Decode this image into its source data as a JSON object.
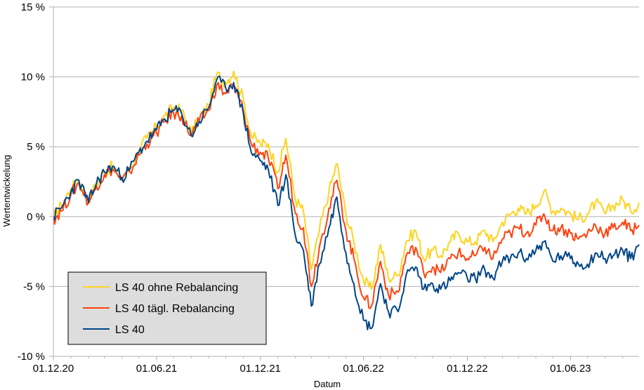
{
  "chart_data": {
    "type": "line",
    "title": "",
    "xlabel": "Datum",
    "ylabel": "Wertentwickelung",
    "ylim": [
      -10,
      15
    ],
    "y_ticks": [
      -10,
      -5,
      0,
      5,
      10,
      15
    ],
    "y_tick_labels": [
      "-10 %",
      "-5 %",
      "0 %",
      "5 %",
      "10 %",
      "15 %"
    ],
    "x_range": [
      "2020-12-01",
      "2023-09-30"
    ],
    "x_ticks": [
      "2020-12-01",
      "2021-06-01",
      "2021-12-01",
      "2022-06-01",
      "2022-12-01",
      "2023-06-01"
    ],
    "x_tick_labels": [
      "01.12.20",
      "01.06.21",
      "01.12.21",
      "01.06.22",
      "01.12.22",
      "01.06.23"
    ],
    "grid": "horizontal",
    "legend_position": "bottom-left",
    "series": [
      {
        "name": "LS 40 ohne Rebalancing",
        "color": "#FFD320",
        "x": [
          "2020-12-01",
          "2020-12-15",
          "2021-01-01",
          "2021-01-15",
          "2021-02-01",
          "2021-02-15",
          "2021-03-01",
          "2021-03-15",
          "2021-04-01",
          "2021-04-15",
          "2021-05-01",
          "2021-05-15",
          "2021-06-01",
          "2021-06-15",
          "2021-07-01",
          "2021-07-15",
          "2021-08-01",
          "2021-08-15",
          "2021-09-01",
          "2021-09-15",
          "2021-10-01",
          "2021-10-15",
          "2021-11-01",
          "2021-11-15",
          "2021-12-01",
          "2021-12-15",
          "2022-01-01",
          "2022-01-15",
          "2022-02-01",
          "2022-02-15",
          "2022-03-01",
          "2022-03-15",
          "2022-04-01",
          "2022-04-15",
          "2022-05-01",
          "2022-05-15",
          "2022-06-01",
          "2022-06-15",
          "2022-07-01",
          "2022-07-15",
          "2022-08-01",
          "2022-08-15",
          "2022-09-01",
          "2022-09-15",
          "2022-10-01",
          "2022-10-15",
          "2022-11-01",
          "2022-11-15",
          "2022-12-01",
          "2022-12-15",
          "2023-01-01",
          "2023-01-15",
          "2023-02-01",
          "2023-02-15",
          "2023-03-01",
          "2023-03-15",
          "2023-04-01",
          "2023-04-15",
          "2023-05-01",
          "2023-05-15",
          "2023-06-01",
          "2023-06-15",
          "2023-07-01",
          "2023-07-15",
          "2023-08-01",
          "2023-08-15",
          "2023-09-01",
          "2023-09-15",
          "2023-09-30"
        ],
        "values": [
          0.0,
          0.8,
          2.0,
          2.6,
          1.2,
          2.4,
          3.2,
          3.6,
          2.8,
          3.4,
          4.8,
          5.6,
          6.4,
          7.2,
          7.8,
          7.6,
          6.0,
          7.0,
          8.0,
          10.2,
          9.6,
          10.4,
          8.4,
          5.8,
          5.2,
          5.2,
          3.2,
          5.6,
          1.2,
          0.4,
          -3.8,
          -1.0,
          1.8,
          3.8,
          0.2,
          -1.8,
          -4.6,
          -5.2,
          -2.0,
          -4.4,
          -4.2,
          -1.8,
          -1.0,
          -3.0,
          -2.4,
          -2.8,
          -1.8,
          -1.2,
          -1.8,
          -1.8,
          -1.0,
          -1.8,
          -0.4,
          0.2,
          0.6,
          0.2,
          0.8,
          1.8,
          0.4,
          0.6,
          0.2,
          -0.2,
          0.2,
          1.0,
          0.2,
          0.8,
          1.2,
          0.4,
          1.0
        ]
      },
      {
        "name": "LS 40 tägl. Rebalancing",
        "color": "#FF420E",
        "x": [
          "2020-12-01",
          "2020-12-15",
          "2021-01-01",
          "2021-01-15",
          "2021-02-01",
          "2021-02-15",
          "2021-03-01",
          "2021-03-15",
          "2021-04-01",
          "2021-04-15",
          "2021-05-01",
          "2021-05-15",
          "2021-06-01",
          "2021-06-15",
          "2021-07-01",
          "2021-07-15",
          "2021-08-01",
          "2021-08-15",
          "2021-09-01",
          "2021-09-15",
          "2021-10-01",
          "2021-10-15",
          "2021-11-01",
          "2021-11-15",
          "2021-12-01",
          "2021-12-15",
          "2022-01-01",
          "2022-01-15",
          "2022-02-01",
          "2022-02-15",
          "2022-03-01",
          "2022-03-15",
          "2022-04-01",
          "2022-04-15",
          "2022-05-01",
          "2022-05-15",
          "2022-06-01",
          "2022-06-15",
          "2022-07-01",
          "2022-07-15",
          "2022-08-01",
          "2022-08-15",
          "2022-09-01",
          "2022-09-15",
          "2022-10-01",
          "2022-10-15",
          "2022-11-01",
          "2022-11-15",
          "2022-12-01",
          "2022-12-15",
          "2023-01-01",
          "2023-01-15",
          "2023-02-01",
          "2023-02-15",
          "2023-03-01",
          "2023-03-15",
          "2023-04-01",
          "2023-04-15",
          "2023-05-01",
          "2023-05-15",
          "2023-06-01",
          "2023-06-15",
          "2023-07-01",
          "2023-07-15",
          "2023-08-01",
          "2023-08-15",
          "2023-09-01",
          "2023-09-15",
          "2023-09-30"
        ],
        "values": [
          -0.2,
          0.4,
          1.6,
          2.4,
          1.0,
          2.2,
          3.0,
          3.4,
          2.6,
          3.2,
          4.4,
          5.2,
          6.0,
          6.8,
          7.4,
          7.2,
          5.8,
          6.8,
          7.6,
          9.4,
          8.8,
          9.4,
          7.6,
          5.2,
          4.6,
          4.2,
          2.0,
          4.4,
          0.2,
          -0.8,
          -5.0,
          -2.2,
          0.6,
          2.6,
          -1.0,
          -3.0,
          -5.8,
          -6.4,
          -3.2,
          -5.6,
          -5.4,
          -2.8,
          -2.2,
          -4.0,
          -3.6,
          -4.0,
          -3.0,
          -2.6,
          -3.0,
          -2.8,
          -2.2,
          -3.0,
          -1.6,
          -1.2,
          -0.8,
          -1.2,
          -0.6,
          0.2,
          -1.0,
          -0.8,
          -1.2,
          -1.6,
          -1.2,
          -0.6,
          -1.2,
          -0.8,
          -0.4,
          -1.0,
          -0.6
        ]
      },
      {
        "name": "LS 40",
        "color": "#004586",
        "x": [
          "2020-12-01",
          "2020-12-15",
          "2021-01-01",
          "2021-01-15",
          "2021-02-01",
          "2021-02-15",
          "2021-03-01",
          "2021-03-15",
          "2021-04-01",
          "2021-04-15",
          "2021-05-01",
          "2021-05-15",
          "2021-06-01",
          "2021-06-15",
          "2021-07-01",
          "2021-07-15",
          "2021-08-01",
          "2021-08-15",
          "2021-09-01",
          "2021-09-15",
          "2021-10-01",
          "2021-10-15",
          "2021-11-01",
          "2021-11-15",
          "2021-12-01",
          "2021-12-15",
          "2022-01-01",
          "2022-01-15",
          "2022-02-01",
          "2022-02-15",
          "2022-03-01",
          "2022-03-15",
          "2022-04-01",
          "2022-04-15",
          "2022-05-01",
          "2022-05-15",
          "2022-06-01",
          "2022-06-15",
          "2022-07-01",
          "2022-07-15",
          "2022-08-01",
          "2022-08-15",
          "2022-09-01",
          "2022-09-15",
          "2022-10-01",
          "2022-10-15",
          "2022-11-01",
          "2022-11-15",
          "2022-12-01",
          "2022-12-15",
          "2023-01-01",
          "2023-01-15",
          "2023-02-01",
          "2023-02-15",
          "2023-03-01",
          "2023-03-15",
          "2023-04-01",
          "2023-04-15",
          "2023-05-01",
          "2023-05-15",
          "2023-06-01",
          "2023-06-15",
          "2023-07-01",
          "2023-07-15",
          "2023-08-01",
          "2023-08-15",
          "2023-09-01",
          "2023-09-15",
          "2023-09-30"
        ],
        "values": [
          0.0,
          0.6,
          1.8,
          2.6,
          1.0,
          2.4,
          3.2,
          3.6,
          2.8,
          3.4,
          4.6,
          5.4,
          6.2,
          7.0,
          7.6,
          7.4,
          5.8,
          6.8,
          7.8,
          9.8,
          9.2,
          9.6,
          7.4,
          4.6,
          4.0,
          3.4,
          0.8,
          3.0,
          -1.4,
          -2.4,
          -6.4,
          -3.4,
          -0.8,
          1.4,
          -2.6,
          -4.8,
          -7.4,
          -8.0,
          -4.8,
          -6.8,
          -6.8,
          -4.2,
          -3.6,
          -5.2,
          -4.8,
          -5.2,
          -4.6,
          -4.0,
          -4.4,
          -4.4,
          -3.8,
          -4.4,
          -3.2,
          -3.0,
          -2.6,
          -3.0,
          -2.4,
          -1.8,
          -3.2,
          -2.8,
          -3.0,
          -3.4,
          -3.4,
          -2.6,
          -3.0,
          -2.8,
          -2.4,
          -3.0,
          -2.0
        ]
      }
    ]
  }
}
